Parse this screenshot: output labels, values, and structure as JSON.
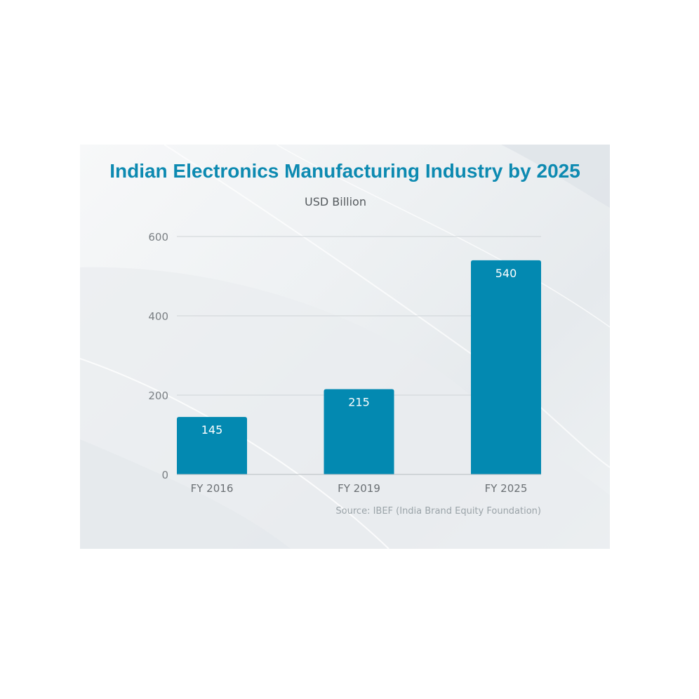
{
  "title": "Indian Electronics Manufacturing Industry by 2025",
  "unit_label": "USD Billion",
  "source": "Source: IBEF (India Brand Equity Foundation)",
  "colors": {
    "bar": "#0389b1",
    "title": "#0d8ab1",
    "grid": "#cfd4d7"
  },
  "chart_data": {
    "type": "bar",
    "title": "Indian Electronics Manufacturing Industry by 2025",
    "ylabel": "USD Billion",
    "xlabel": "",
    "categories": [
      "FY 2016",
      "FY 2019",
      "FY 2025"
    ],
    "values": [
      145,
      215,
      540
    ],
    "ylim": [
      0,
      600
    ],
    "yticks": [
      0,
      200,
      400,
      600
    ],
    "grid": true,
    "data_labels": true
  }
}
